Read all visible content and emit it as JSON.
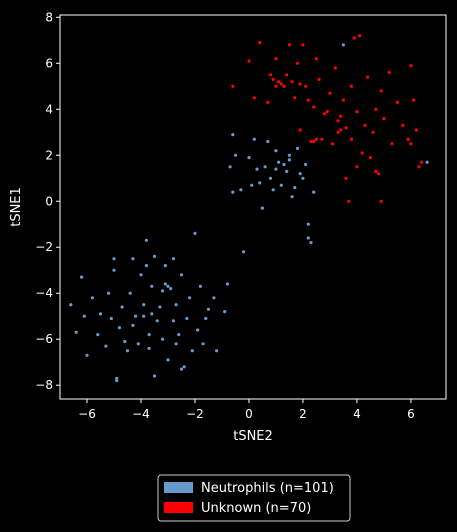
{
  "chart_data": {
    "type": "scatter",
    "title": "",
    "xlabel": "tSNE2",
    "ylabel": "tSNE1",
    "xlim": [
      -7.0,
      7.3
    ],
    "ylim": [
      -8.6,
      8.1
    ],
    "xticks": [
      "−6",
      "−4",
      "−2",
      "0",
      "2",
      "4",
      "6"
    ],
    "xtick_values": [
      -6,
      -4,
      -2,
      0,
      2,
      4,
      6
    ],
    "yticks": [
      "−8",
      "−6",
      "−4",
      "−2",
      "0",
      "2",
      "4",
      "6",
      "8"
    ],
    "ytick_values": [
      -8,
      -6,
      -4,
      -2,
      0,
      2,
      4,
      6,
      8
    ],
    "grid": false,
    "legend_position": "bottom-center-outside",
    "series": [
      {
        "name": "Neutrophils (n=101)",
        "color": "#6699cc",
        "points": [
          [
            -6.6,
            -4.5
          ],
          [
            -6.4,
            -5.7
          ],
          [
            -6.2,
            -3.3
          ],
          [
            -6.1,
            -5.0
          ],
          [
            -6.0,
            -6.7
          ],
          [
            -5.8,
            -4.2
          ],
          [
            -5.6,
            -5.8
          ],
          [
            -5.5,
            -4.9
          ],
          [
            -5.3,
            -6.3
          ],
          [
            -5.2,
            -4.0
          ],
          [
            -5.1,
            -5.1
          ],
          [
            -5.0,
            -3.0
          ],
          [
            -5.0,
            -2.5
          ],
          [
            -4.9,
            -7.7
          ],
          [
            -4.9,
            -7.8
          ],
          [
            -4.8,
            -5.5
          ],
          [
            -4.7,
            -4.6
          ],
          [
            -4.6,
            -6.1
          ],
          [
            -4.5,
            -6.5
          ],
          [
            -4.4,
            -4.0
          ],
          [
            -4.3,
            -5.4
          ],
          [
            -4.3,
            -2.5
          ],
          [
            -4.2,
            -5.0
          ],
          [
            -4.1,
            -6.2
          ],
          [
            -4.0,
            -3.2
          ],
          [
            -3.9,
            -5.0
          ],
          [
            -3.9,
            -4.5
          ],
          [
            -3.8,
            -1.7
          ],
          [
            -3.8,
            -2.8
          ],
          [
            -3.7,
            -5.8
          ],
          [
            -3.7,
            -6.4
          ],
          [
            -3.6,
            -3.7
          ],
          [
            -3.6,
            -4.9
          ],
          [
            -3.5,
            -7.6
          ],
          [
            -3.5,
            -2.4
          ],
          [
            -3.4,
            -5.2
          ],
          [
            -3.3,
            -4.6
          ],
          [
            -3.2,
            -3.9
          ],
          [
            -3.2,
            -6.0
          ],
          [
            -3.1,
            -3.6
          ],
          [
            -3.1,
            -2.8
          ],
          [
            -3.0,
            -3.7
          ],
          [
            -3.0,
            -6.9
          ],
          [
            -2.9,
            -3.8
          ],
          [
            -2.8,
            -5.2
          ],
          [
            -2.8,
            -2.5
          ],
          [
            -2.7,
            -6.2
          ],
          [
            -2.7,
            -4.5
          ],
          [
            -2.6,
            -5.8
          ],
          [
            -2.5,
            -7.3
          ],
          [
            -2.5,
            -3.2
          ],
          [
            -2.4,
            -7.2
          ],
          [
            -2.3,
            -5.1
          ],
          [
            -2.2,
            -4.2
          ],
          [
            -2.1,
            -6.5
          ],
          [
            -2.0,
            -1.4
          ],
          [
            -1.9,
            -5.6
          ],
          [
            -1.8,
            -3.7
          ],
          [
            -1.7,
            -6.2
          ],
          [
            -1.6,
            -5.1
          ],
          [
            -1.5,
            -4.7
          ],
          [
            -1.3,
            -4.2
          ],
          [
            -1.2,
            -6.5
          ],
          [
            -0.9,
            -4.8
          ],
          [
            -0.8,
            -3.6
          ],
          [
            -0.7,
            1.5
          ],
          [
            -0.6,
            0.4
          ],
          [
            -0.6,
            2.9
          ],
          [
            -0.5,
            2.0
          ],
          [
            -0.3,
            0.5
          ],
          [
            -0.2,
            -2.2
          ],
          [
            0.0,
            1.9
          ],
          [
            0.1,
            0.7
          ],
          [
            0.2,
            2.7
          ],
          [
            0.3,
            1.4
          ],
          [
            0.4,
            0.8
          ],
          [
            0.5,
            -0.3
          ],
          [
            0.6,
            1.5
          ],
          [
            0.7,
            2.6
          ],
          [
            0.8,
            1.0
          ],
          [
            0.9,
            0.5
          ],
          [
            1.0,
            2.2
          ],
          [
            1.0,
            1.4
          ],
          [
            1.1,
            1.7
          ],
          [
            1.2,
            0.7
          ],
          [
            1.3,
            1.6
          ],
          [
            1.4,
            1.3
          ],
          [
            1.5,
            1.8
          ],
          [
            1.5,
            2.0
          ],
          [
            1.6,
            0.2
          ],
          [
            1.7,
            0.6
          ],
          [
            1.8,
            2.3
          ],
          [
            1.9,
            1.2
          ],
          [
            2.0,
            1.0
          ],
          [
            2.1,
            1.6
          ],
          [
            2.2,
            -1.0
          ],
          [
            2.2,
            -1.6
          ],
          [
            2.3,
            -1.8
          ],
          [
            2.4,
            0.4
          ],
          [
            3.5,
            6.8
          ],
          [
            6.6,
            1.7
          ]
        ]
      },
      {
        "name": "Unknown (n=70)",
        "color": "#ff0000",
        "points": [
          [
            -0.6,
            5.0
          ],
          [
            0.0,
            6.1
          ],
          [
            0.2,
            4.5
          ],
          [
            0.4,
            6.9
          ],
          [
            0.7,
            4.3
          ],
          [
            0.8,
            5.5
          ],
          [
            0.9,
            5.3
          ],
          [
            1.0,
            6.2
          ],
          [
            1.0,
            5.0
          ],
          [
            1.1,
            5.2
          ],
          [
            1.2,
            5.1
          ],
          [
            1.3,
            5.0
          ],
          [
            1.4,
            5.5
          ],
          [
            1.5,
            6.8
          ],
          [
            1.6,
            5.2
          ],
          [
            1.7,
            4.5
          ],
          [
            1.8,
            6.0
          ],
          [
            1.9,
            5.1
          ],
          [
            1.9,
            3.1
          ],
          [
            2.0,
            6.8
          ],
          [
            2.1,
            5.0
          ],
          [
            2.2,
            4.4
          ],
          [
            2.3,
            2.6
          ],
          [
            2.4,
            2.6
          ],
          [
            2.4,
            4.1
          ],
          [
            2.5,
            2.7
          ],
          [
            2.5,
            6.2
          ],
          [
            2.6,
            5.3
          ],
          [
            2.7,
            2.7
          ],
          [
            2.8,
            3.8
          ],
          [
            2.9,
            3.9
          ],
          [
            3.0,
            4.7
          ],
          [
            3.1,
            2.5
          ],
          [
            3.2,
            5.8
          ],
          [
            3.3,
            3.5
          ],
          [
            3.3,
            3.0
          ],
          [
            3.4,
            3.1
          ],
          [
            3.4,
            3.7
          ],
          [
            3.5,
            4.4
          ],
          [
            3.6,
            3.2
          ],
          [
            3.6,
            1.0
          ],
          [
            3.7,
            0.0
          ],
          [
            3.8,
            2.7
          ],
          [
            3.8,
            5.0
          ],
          [
            3.9,
            7.1
          ],
          [
            4.0,
            3.9
          ],
          [
            4.0,
            1.5
          ],
          [
            4.1,
            7.2
          ],
          [
            4.2,
            2.1
          ],
          [
            4.3,
            3.3
          ],
          [
            4.4,
            5.4
          ],
          [
            4.5,
            1.9
          ],
          [
            4.6,
            3.0
          ],
          [
            4.7,
            4.0
          ],
          [
            4.7,
            1.3
          ],
          [
            4.8,
            1.2
          ],
          [
            4.9,
            4.8
          ],
          [
            4.9,
            0.0
          ],
          [
            5.0,
            3.6
          ],
          [
            5.2,
            5.6
          ],
          [
            5.3,
            2.5
          ],
          [
            5.5,
            4.3
          ],
          [
            5.7,
            3.3
          ],
          [
            5.9,
            2.7
          ],
          [
            6.0,
            2.5
          ],
          [
            6.1,
            4.4
          ],
          [
            6.2,
            3.1
          ],
          [
            6.3,
            1.5
          ],
          [
            6.4,
            1.7
          ],
          [
            6.0,
            5.9
          ]
        ]
      }
    ]
  }
}
